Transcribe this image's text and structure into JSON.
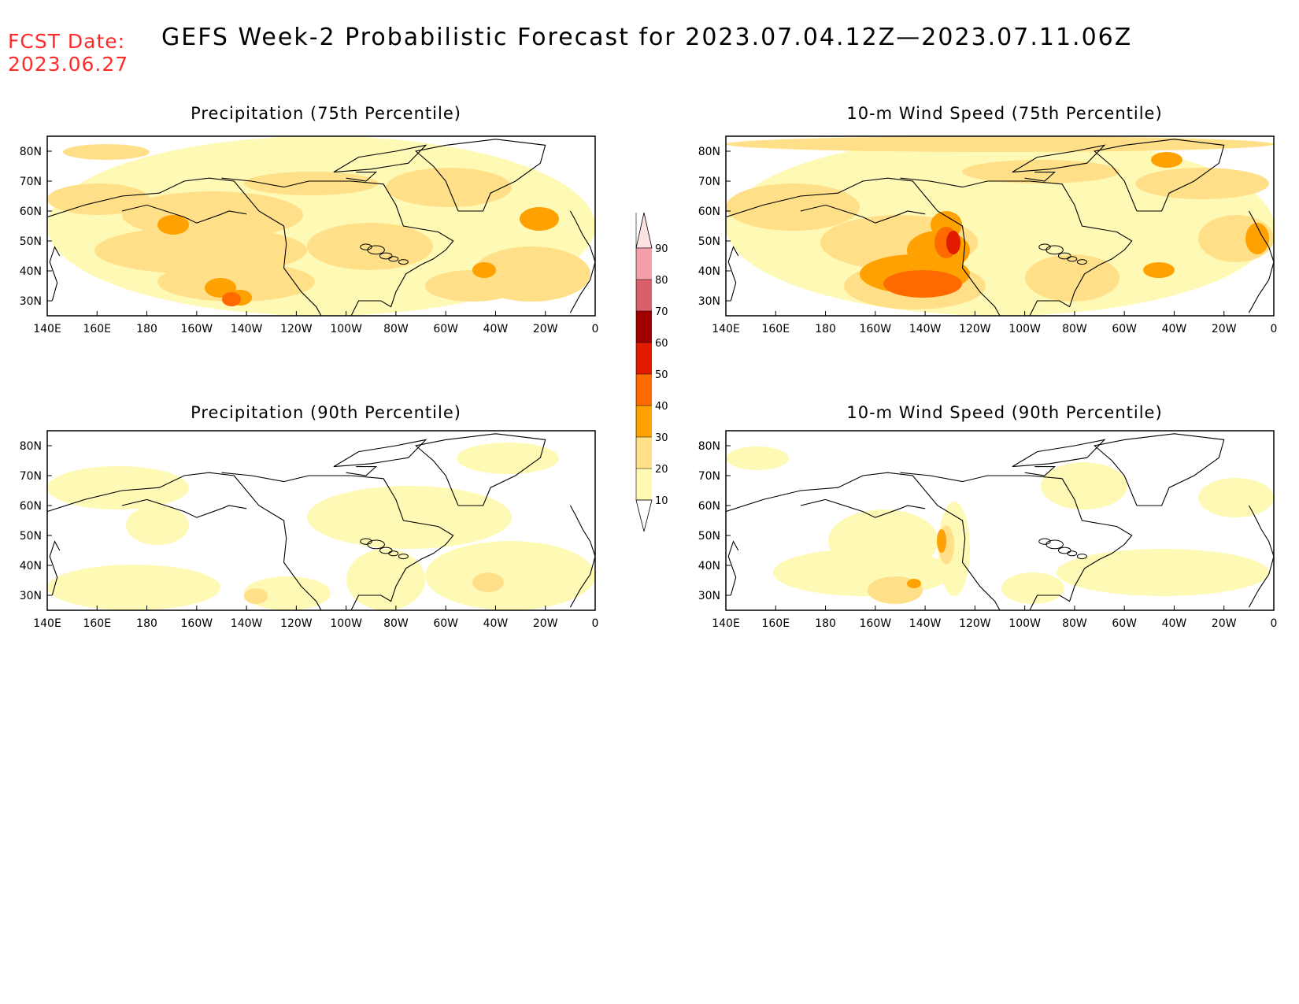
{
  "header": {
    "fcst_date_label": "FCST Date:",
    "fcst_date_value": "2023.06.27",
    "title": "GEFS Week-2 Probabilistic Forecast for 2023.07.04.12Z—2023.07.11.06Z"
  },
  "panels": [
    {
      "title": "Precipitation (75th Percentile)",
      "intensity": "high-precip"
    },
    {
      "title": "10-m Wind Speed (75th Percentile)",
      "intensity": "high-wind"
    },
    {
      "title": "Precipitation (90th Percentile)",
      "intensity": "low-precip"
    },
    {
      "title": "10-m Wind Speed (90th Percentile)",
      "intensity": "low-wind"
    }
  ],
  "axes": {
    "lon_labels": [
      "140E",
      "160E",
      "180",
      "160W",
      "140W",
      "120W",
      "100W",
      "80W",
      "60W",
      "40W",
      "20W",
      "0"
    ],
    "lat_labels": [
      "80N",
      "70N",
      "60N",
      "50N",
      "40N",
      "30N"
    ]
  },
  "colorbar": {
    "levels": [
      "10",
      "20",
      "30",
      "40",
      "50",
      "60",
      "70",
      "80",
      "90"
    ],
    "colors": [
      "#fff9b6",
      "#ffe089",
      "#ffa100",
      "#ff6a00",
      "#e21a00",
      "#a10000",
      "#d9606a",
      "#f3a0a8",
      "#fde2e4"
    ]
  }
}
